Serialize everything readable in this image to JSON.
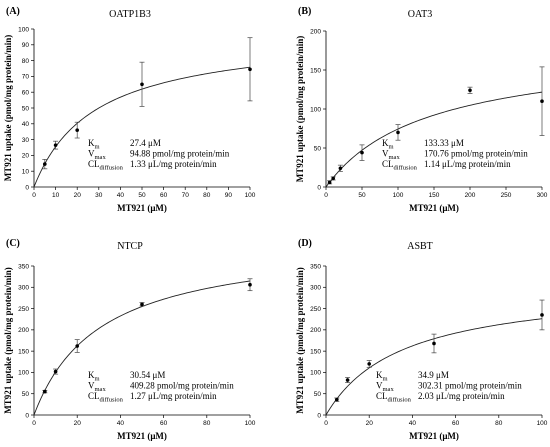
{
  "chart_data": [
    {
      "type": "scatter",
      "panel_label": "(A)",
      "title": "OATP1B3",
      "xlabel": "MT921 (μM)",
      "ylabel": "MT921 uptake (pmol/mg protein/min)",
      "xlim": [
        0,
        100
      ],
      "ylim": [
        0,
        100
      ],
      "xticks": [
        0,
        10,
        20,
        30,
        40,
        50,
        60,
        70,
        80,
        90,
        100
      ],
      "yticks": [
        0,
        10,
        20,
        30,
        40,
        50,
        60,
        70,
        80,
        90,
        100
      ],
      "x": [
        5,
        10,
        20,
        50,
        100
      ],
      "y": [
        14.5,
        26.5,
        36,
        65,
        74.5
      ],
      "err": [
        3,
        2.5,
        5,
        14,
        20
      ],
      "fit": {
        "Km": 27.4,
        "Vmax": 94.88,
        "Cl": 1.33
      },
      "params": [
        {
          "sym": "K",
          "sub": "m",
          "value": "27.4 μM"
        },
        {
          "sym": "V",
          "sub": "max",
          "value": "94.88 pmol/mg protein/min"
        },
        {
          "sym": "CL",
          "sub": "diffusion",
          "value": "1.33 μL/mg protein/min"
        }
      ]
    },
    {
      "type": "scatter",
      "panel_label": "(B)",
      "title": "OAT3",
      "xlabel": "MT921 (μM)",
      "ylabel": "MT921 uptake (pmol/mg protein/min)",
      "xlim": [
        0,
        300
      ],
      "ylim": [
        0,
        200
      ],
      "xticks": [
        0,
        50,
        100,
        150,
        200,
        250,
        300
      ],
      "yticks": [
        0,
        50,
        100,
        150,
        200
      ],
      "x": [
        5,
        10,
        20,
        50,
        100,
        200,
        300
      ],
      "y": [
        6,
        11,
        24,
        44,
        70,
        124,
        110
      ],
      "err": [
        2,
        2,
        4,
        10,
        10,
        4,
        44
      ],
      "fit": {
        "Km": 133.33,
        "Vmax": 170.76,
        "Cl": 1.14
      },
      "params": [
        {
          "sym": "K",
          "sub": "m",
          "value": "133.33 μM"
        },
        {
          "sym": "V",
          "sub": "max",
          "value": "170.76 pmol/mg protein/min"
        },
        {
          "sym": "CL",
          "sub": "diffusion",
          "value": "1.14 μL/mg protein/min"
        }
      ]
    },
    {
      "type": "scatter",
      "panel_label": "(C)",
      "title": "NTCP",
      "xlabel": "MT921 (μM)",
      "ylabel": "MT921 uptake (pmol/mg protein/min)",
      "xlim": [
        0,
        100
      ],
      "ylim": [
        0,
        350
      ],
      "xticks": [
        0,
        20,
        40,
        60,
        80,
        100
      ],
      "yticks": [
        0,
        50,
        100,
        150,
        200,
        250,
        300,
        350
      ],
      "x": [
        5,
        10,
        20,
        50,
        100
      ],
      "y": [
        55,
        102,
        162,
        260,
        306
      ],
      "err": [
        3,
        6,
        15,
        4,
        14
      ],
      "fit": {
        "Km": 30.54,
        "Vmax": 409.28,
        "Cl": 1.27
      },
      "params": [
        {
          "sym": "K",
          "sub": "m",
          "value": "30.54 μM"
        },
        {
          "sym": "V",
          "sub": "max",
          "value": "409.28 pmol/mg protein/min"
        },
        {
          "sym": "CL",
          "sub": "diffusion",
          "value": "1.27 μL/mg protein/min"
        }
      ]
    },
    {
      "type": "scatter",
      "panel_label": "(D)",
      "title": "ASBT",
      "xlabel": "MT921 (μM)",
      "ylabel": "MT921 uptake (pmol/mg protein/min)",
      "xlim": [
        0,
        100
      ],
      "ylim": [
        0,
        350
      ],
      "xticks": [
        0,
        20,
        40,
        60,
        80,
        100
      ],
      "yticks": [
        0,
        50,
        100,
        150,
        200,
        250,
        300,
        350
      ],
      "x": [
        5,
        10,
        20,
        50,
        100
      ],
      "y": [
        36,
        82,
        120,
        168,
        235
      ],
      "err": [
        4,
        6,
        8,
        22,
        35
      ],
      "fit": {
        "Km": 34.9,
        "Vmax": 302.31,
        "Cl": 2.03
      },
      "params": [
        {
          "sym": "K",
          "sub": "m",
          "value": "34.9 μM"
        },
        {
          "sym": "V",
          "sub": "max",
          "value": "302.31 pmol/mg protein/min"
        },
        {
          "sym": "CL",
          "sub": "diffusion",
          "value": "2.03 μL/mg protein/min"
        }
      ]
    }
  ]
}
